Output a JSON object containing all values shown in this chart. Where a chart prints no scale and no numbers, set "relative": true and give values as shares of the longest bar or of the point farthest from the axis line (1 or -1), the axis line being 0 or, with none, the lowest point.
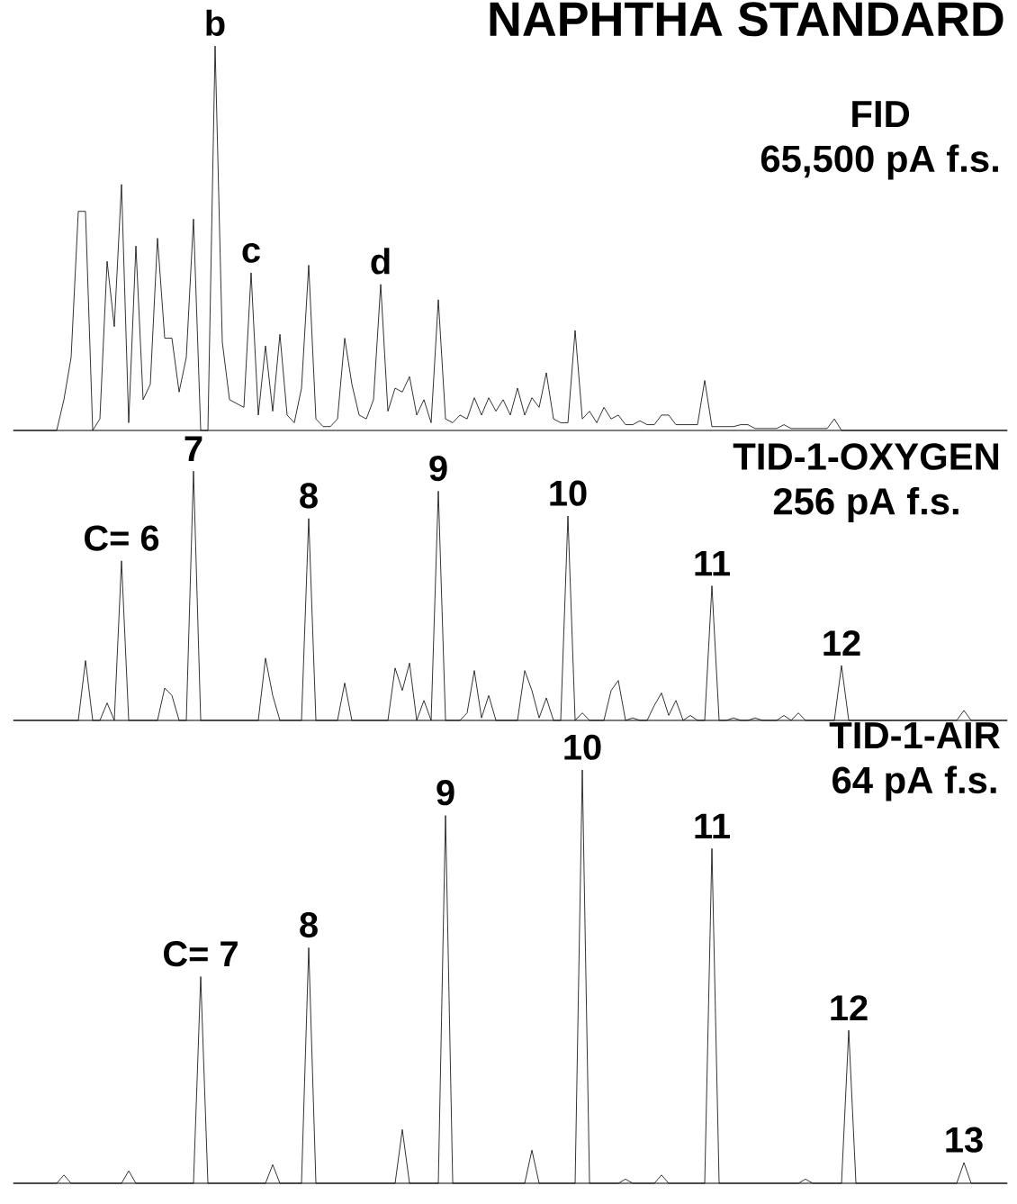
{
  "chart_data": [
    {
      "type": "line",
      "relative": true,
      "color": "#000000",
      "title": "NAPHTHA STANDARD",
      "categories": [
        null,
        null,
        null,
        null,
        null,
        null,
        null,
        null,
        null,
        null,
        null,
        null,
        null,
        null,
        null,
        null,
        null,
        null,
        null,
        null,
        null,
        null,
        null,
        null,
        null,
        null,
        null,
        null,
        null,
        null,
        null,
        null,
        null,
        null,
        null,
        null,
        null,
        null,
        null,
        null,
        null,
        null,
        null,
        null,
        null,
        null,
        null,
        null,
        null,
        null,
        null,
        null,
        null,
        null,
        null,
        null,
        null,
        null,
        null,
        null,
        null,
        null,
        null,
        null,
        null,
        null,
        null,
        null,
        null,
        null,
        null,
        null,
        null,
        null,
        null,
        null,
        null,
        null,
        null,
        null,
        null,
        null,
        null,
        null,
        null,
        null,
        null,
        null,
        null,
        null,
        null,
        null,
        null,
        null,
        null,
        null,
        null,
        null,
        null,
        null,
        null,
        null,
        null,
        null,
        null,
        null,
        null,
        null,
        null,
        null,
        null,
        null,
        null,
        null,
        null,
        null,
        null,
        null,
        null,
        null,
        null,
        null,
        null,
        null,
        null,
        null,
        null,
        null,
        null,
        null,
        null,
        null,
        null,
        null,
        null,
        null,
        null,
        null,
        null
      ],
      "values": [
        0,
        0,
        0,
        0,
        0,
        0,
        0,
        0.08,
        0.19,
        0.57,
        0.57,
        0,
        0.03,
        0.44,
        0.27,
        0.64,
        0.02,
        0.48,
        0.08,
        0.12,
        0.5,
        0.24,
        0.24,
        0.1,
        0.19,
        0.55,
        0,
        0,
        1,
        0.23,
        0.08,
        0.07,
        0.06,
        0.41,
        0.04,
        0.22,
        0.05,
        0.25,
        0.04,
        0.02,
        0.11,
        0.43,
        0.03,
        0.01,
        0.01,
        0.03,
        0.24,
        0.12,
        0.04,
        0.03,
        0.08,
        0.38,
        0.05,
        0.11,
        0.1,
        0.14,
        0.04,
        0.08,
        0.02,
        0.34,
        0.03,
        0.02,
        0.04,
        0.03,
        0.085,
        0.04,
        0.085,
        0.05,
        0.08,
        0.04,
        0.11,
        0.04,
        0.085,
        0.06,
        0.15,
        0.03,
        0.02,
        0.02,
        0.26,
        0.03,
        0.05,
        0.02,
        0.06,
        0.03,
        0.04,
        0.015,
        0.015,
        0.025,
        0.015,
        0.015,
        0.04,
        0.04,
        0.015,
        0.015,
        0.015,
        0.015,
        0.13,
        0.01,
        0.01,
        0.01,
        0.01,
        0.015,
        0.015,
        0.005,
        0.005,
        0.005,
        0.005,
        0.015,
        0.005,
        0.005,
        0.005,
        0.005,
        0.005,
        0.005,
        0.03,
        0,
        0,
        0,
        0,
        0,
        0,
        0,
        0,
        0,
        0,
        0,
        0,
        0,
        0,
        0,
        0,
        0,
        0,
        0,
        0,
        0,
        0,
        0,
        0
      ],
      "annotations": [
        "FID",
        "65,500 pA f.s.",
        {
          "text": "b",
          "y": 1
        },
        {
          "text": "c",
          "y": 0.41
        },
        {
          "text": "d",
          "y": 0.38
        }
      ]
    },
    {
      "type": "line",
      "relative": true,
      "color": "#000000",
      "categories": [
        null,
        null,
        null,
        null,
        null,
        null,
        null,
        null,
        null,
        null,
        null,
        null,
        null,
        null,
        null,
        null,
        null,
        null,
        null,
        null,
        null,
        null,
        null,
        null,
        null,
        null,
        null,
        null,
        null,
        null,
        null,
        null,
        null,
        null,
        null,
        null,
        null,
        null,
        null,
        null,
        null,
        null,
        null,
        null,
        null,
        null,
        null,
        null,
        null,
        null,
        null,
        null,
        null,
        null,
        null,
        null,
        null,
        null,
        null,
        null,
        null,
        null,
        null,
        null,
        null,
        null,
        null,
        null,
        null,
        null,
        null,
        null,
        null,
        null,
        null,
        null,
        null,
        null,
        null,
        null,
        null,
        null,
        null,
        null,
        null,
        null,
        null,
        null,
        null,
        null,
        null,
        null,
        null,
        null,
        null,
        null,
        null,
        null,
        null,
        null,
        null,
        null,
        null,
        null,
        null,
        null,
        null,
        null,
        null,
        null,
        null,
        null,
        null,
        null,
        null,
        null,
        null,
        null,
        null,
        null,
        null,
        null,
        null,
        null,
        null,
        null,
        null,
        null,
        null,
        null,
        null,
        null,
        null,
        null,
        null,
        null,
        null,
        null,
        null
      ],
      "values": [
        0,
        0,
        0,
        0,
        0,
        0,
        0,
        0,
        0,
        0,
        0.24,
        0,
        0,
        0.07,
        0,
        0.64,
        0,
        0,
        0,
        0,
        0,
        0.13,
        0.1,
        0,
        0,
        1,
        0,
        0,
        0,
        0,
        0,
        0,
        0,
        0,
        0,
        0.25,
        0.1,
        0,
        0,
        0,
        0,
        0.81,
        0,
        0,
        0,
        0,
        0.15,
        0,
        0,
        0,
        0,
        0,
        0,
        0.21,
        0.12,
        0.23,
        0,
        0.08,
        0,
        0.92,
        0,
        0,
        0,
        0.03,
        0.2,
        0.01,
        0.1,
        0,
        0,
        0,
        0,
        0.2,
        0.12,
        0.01,
        0.09,
        0,
        0,
        0.82,
        0,
        0.03,
        0,
        0,
        0,
        0.12,
        0.16,
        0,
        0.01,
        0,
        0,
        0.06,
        0.11,
        0.02,
        0.08,
        0,
        0.02,
        0,
        0,
        0.54,
        0,
        0,
        0.01,
        0,
        0,
        0.01,
        0,
        0,
        0,
        0.02,
        0,
        0.03,
        0,
        0,
        0,
        0,
        0,
        0.22,
        0,
        0,
        0,
        0,
        0,
        0,
        0,
        0,
        0,
        0,
        0,
        0,
        0,
        0,
        0,
        0,
        0.04,
        0,
        0,
        0,
        0,
        0,
        0
      ],
      "annotations": [
        "TID-1-OXYGEN",
        "256 pA f.s.",
        {
          "text": "C= 6",
          "y": 0.64
        },
        {
          "text": "7",
          "y": 1
        },
        {
          "text": "8",
          "y": 0.81
        },
        {
          "text": "9",
          "y": 0.92
        },
        {
          "text": "10",
          "y": 0.82
        },
        {
          "text": "11",
          "y": 0.54
        },
        {
          "text": "12",
          "y": 0.22
        }
      ]
    },
    {
      "type": "line",
      "relative": true,
      "color": "#000000",
      "categories": [
        null,
        null,
        null,
        null,
        null,
        null,
        null,
        null,
        null,
        null,
        null,
        null,
        null,
        null,
        null,
        null,
        null,
        null,
        null,
        null,
        null,
        null,
        null,
        null,
        null,
        null,
        null,
        null,
        null,
        null,
        null,
        null,
        null,
        null,
        null,
        null,
        null,
        null,
        null,
        null,
        null,
        null,
        null,
        null,
        null,
        null,
        null,
        null,
        null,
        null,
        null,
        null,
        null,
        null,
        null,
        null,
        null,
        null,
        null,
        null,
        null,
        null,
        null,
        null,
        null,
        null,
        null,
        null,
        null,
        null,
        null,
        null,
        null,
        null,
        null,
        null,
        null,
        null,
        null,
        null,
        null,
        null,
        null,
        null,
        null,
        null,
        null,
        null,
        null,
        null,
        null,
        null,
        null,
        null,
        null,
        null,
        null,
        null,
        null,
        null,
        null,
        null,
        null,
        null,
        null,
        null,
        null,
        null,
        null,
        null,
        null,
        null,
        null,
        null,
        null,
        null,
        null,
        null,
        null,
        null,
        null,
        null,
        null,
        null,
        null,
        null,
        null,
        null,
        null,
        null,
        null,
        null,
        null,
        null,
        null,
        null,
        null,
        null,
        null
      ],
      "values": [
        0,
        0,
        0,
        0,
        0,
        0,
        0,
        0.02,
        0,
        0,
        0,
        0,
        0,
        0,
        0,
        0,
        0.03,
        0,
        0,
        0,
        0,
        0,
        0,
        0,
        0,
        0,
        0.5,
        0,
        0,
        0,
        0,
        0,
        0,
        0,
        0,
        0,
        0.045,
        0,
        0,
        0,
        0,
        0.57,
        0,
        0,
        0,
        0,
        0,
        0,
        0,
        0,
        0,
        0,
        0,
        0,
        0.13,
        0,
        0,
        0,
        0,
        0,
        0.89,
        0,
        0,
        0,
        0,
        0,
        0,
        0,
        0,
        0,
        0,
        0,
        0.08,
        0,
        0,
        0,
        0,
        0,
        0,
        1,
        0,
        0,
        0,
        0,
        0,
        0.01,
        0,
        0,
        0,
        0,
        0.02,
        0,
        0,
        0,
        0,
        0,
        0,
        0.81,
        0,
        0,
        0,
        0,
        0,
        0,
        0,
        0,
        0,
        0,
        0,
        0,
        0.01,
        0,
        0,
        0,
        0,
        0,
        0.37,
        0,
        0,
        0,
        0,
        0,
        0,
        0,
        0,
        0,
        0,
        0,
        0,
        0,
        0,
        0,
        0.05,
        0,
        0,
        0,
        0,
        0,
        0
      ],
      "annotations": [
        "TID-1-AIR",
        "64 pA f.s.",
        {
          "text": "C= 7",
          "y": 0.5
        },
        {
          "text": "8",
          "y": 0.57
        },
        {
          "text": "9",
          "y": 0.89
        },
        {
          "text": "10",
          "y": 1
        },
        {
          "text": "11",
          "y": 0.81
        },
        {
          "text": "12",
          "y": 0.37
        },
        {
          "text": "13",
          "y": 0.05
        }
      ]
    }
  ]
}
